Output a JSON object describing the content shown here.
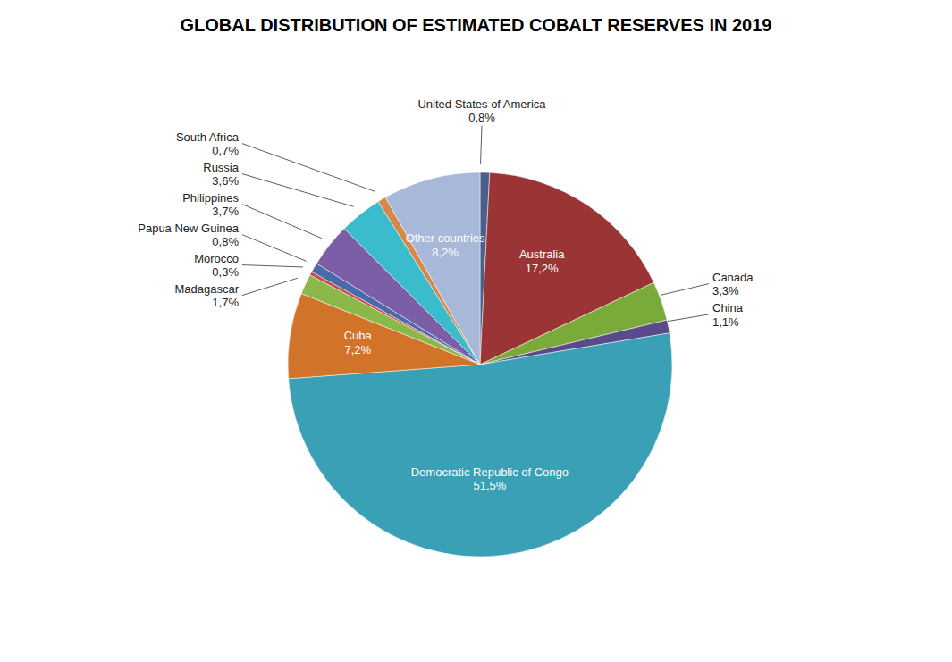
{
  "chart_data": {
    "type": "pie",
    "title": "GLOBAL DISTRIBUTION OF ESTIMATED COBALT RESERVES IN 2019",
    "categories": [
      "United States of America",
      "Australia",
      "Canada",
      "China",
      "Democratic Republic of Congo",
      "Cuba",
      "Madagascar",
      "Morocco",
      "Papua New Guinea",
      "Philippines",
      "Russia",
      "South Africa",
      "Other countries"
    ],
    "values": [
      0.8,
      17.2,
      3.3,
      1.1,
      51.5,
      7.2,
      1.7,
      0.3,
      0.8,
      3.7,
      3.6,
      0.7,
      8.2
    ],
    "value_labels": [
      "0,8%",
      "17,2%",
      "3,3%",
      "1,1%",
      "51,5%",
      "7,2%",
      "1,7%",
      "0,3%",
      "0,8%",
      "3,7%",
      "3,6%",
      "0,7%",
      "8,2%"
    ],
    "colors": [
      "#4a5f8a",
      "#9b3535",
      "#7aab3a",
      "#5a4a8a",
      "#3aa0b5",
      "#d2732a",
      "#8ab84a",
      "#c84a4a",
      "#4a6aaa",
      "#7b5ea7",
      "#3abccc",
      "#d4884a",
      "#a8b8d8"
    ],
    "data_labels": true
  }
}
